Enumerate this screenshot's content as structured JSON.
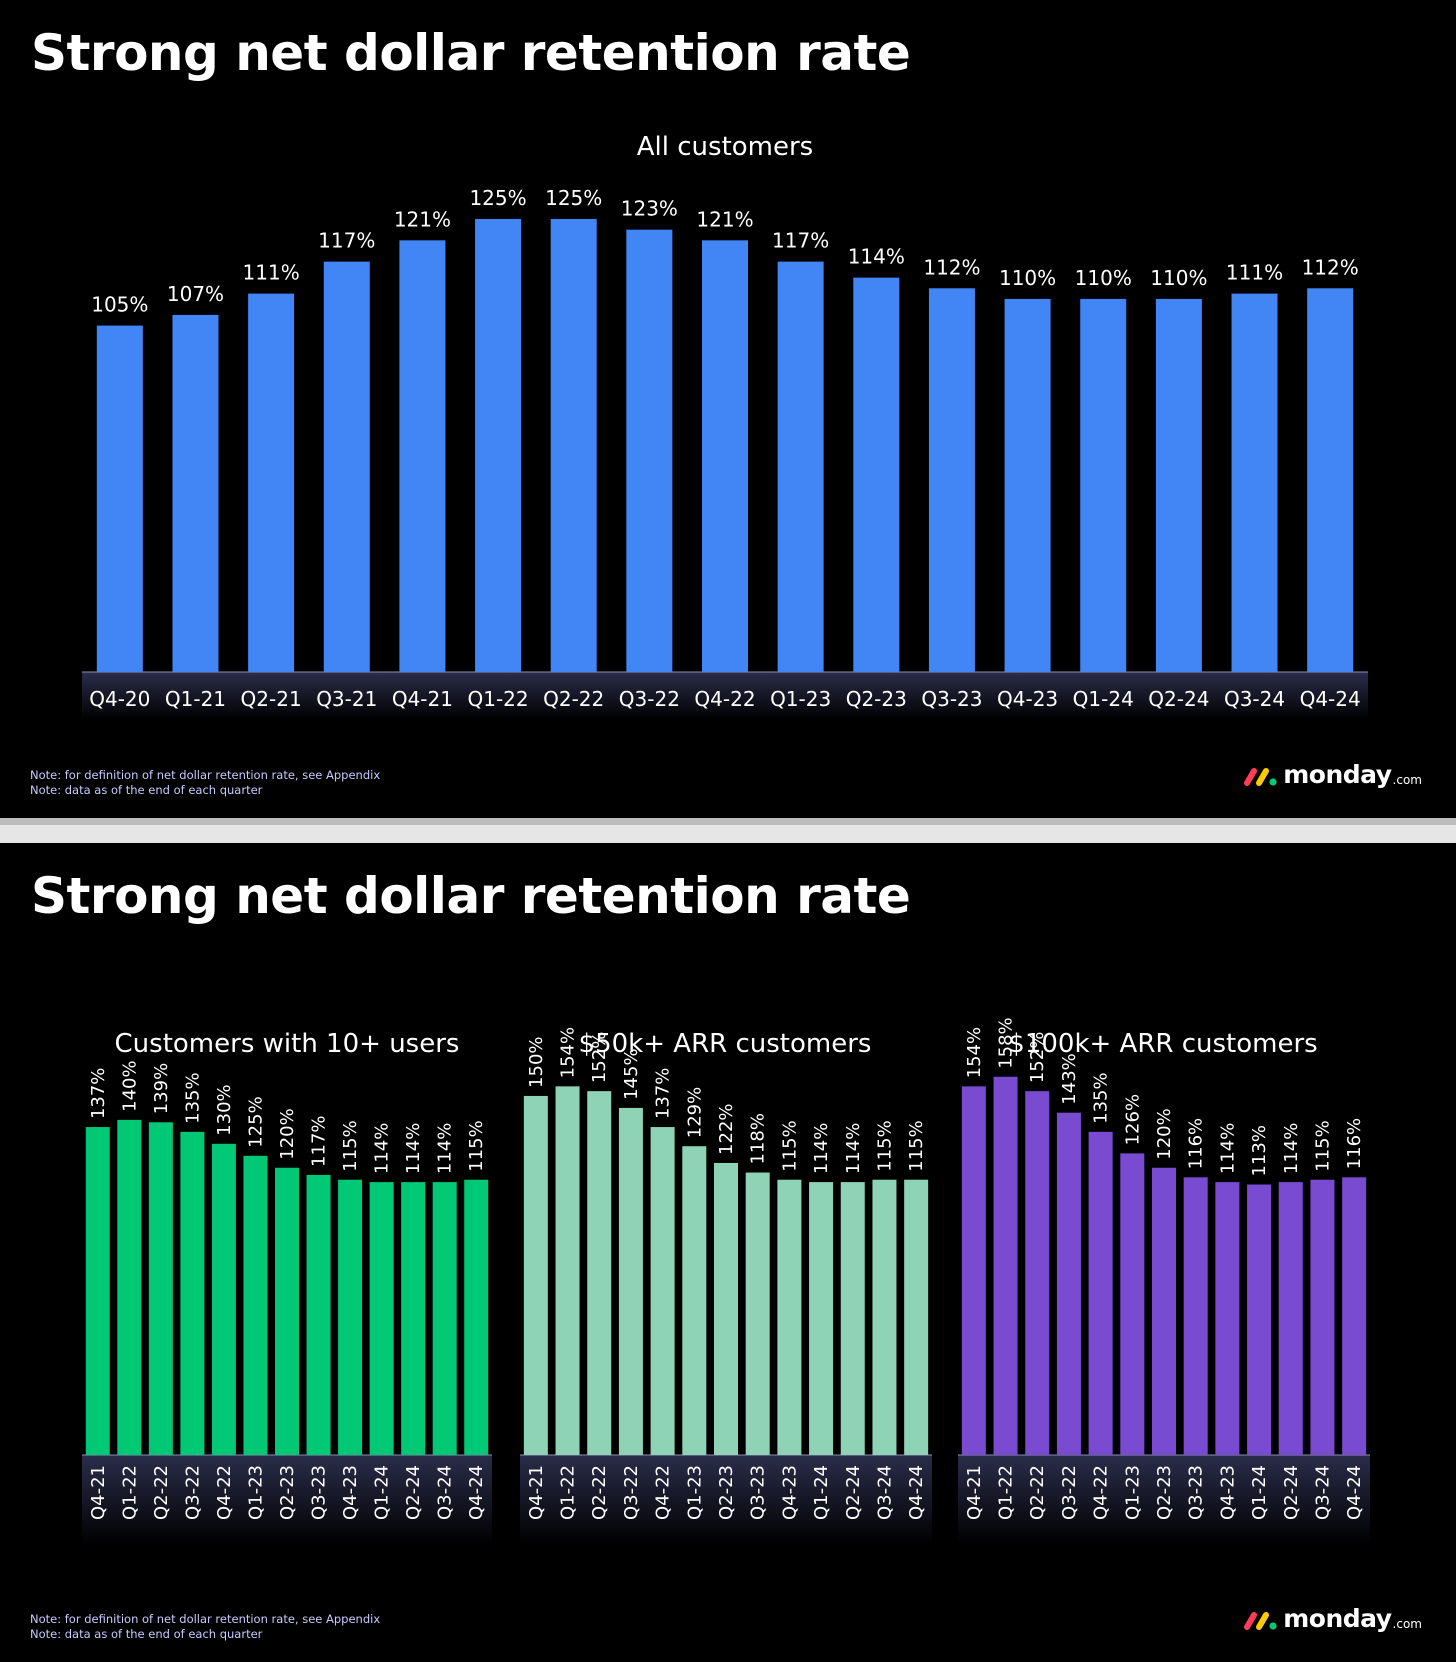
{
  "slides": [
    {
      "title": "Strong net dollar retention rate",
      "notes": [
        "Note: for definition of net dollar retention rate, see Appendix",
        "Note: data as of the end of each quarter"
      ],
      "logo": {
        "word": "monday",
        "suffix": ".com"
      }
    },
    {
      "title": "Strong net dollar retention rate",
      "notes": [
        "Note: for definition of net dollar retention rate, see Appendix",
        "Note: data as of the end of each quarter"
      ],
      "logo": {
        "word": "monday",
        "suffix": ".com"
      }
    }
  ],
  "colors": {
    "background": "#000000",
    "all_customers": "#4285f4",
    "ten_plus_users": "#00c875",
    "fifty_k_arr": "#8fd3b6",
    "hundred_k_arr": "#784bd1",
    "logo": [
      "#ff3d57",
      "#ffcb00",
      "#00c875"
    ]
  },
  "chart_data": [
    {
      "type": "bar",
      "title": "All customers",
      "categories": [
        "Q4-20",
        "Q1-21",
        "Q2-21",
        "Q3-21",
        "Q4-21",
        "Q1-22",
        "Q2-22",
        "Q3-22",
        "Q4-22",
        "Q1-23",
        "Q2-23",
        "Q3-23",
        "Q4-23",
        "Q1-24",
        "Q2-24",
        "Q3-24",
        "Q4-24"
      ],
      "values": [
        105,
        107,
        111,
        117,
        121,
        125,
        125,
        123,
        121,
        117,
        114,
        112,
        110,
        110,
        110,
        111,
        112
      ],
      "value_labels": [
        "105%",
        "107%",
        "111%",
        "117%",
        "121%",
        "125%",
        "125%",
        "123%",
        "121%",
        "117%",
        "114%",
        "112%",
        "110%",
        "110%",
        "110%",
        "111%",
        "112%"
      ],
      "color": "#4285f4",
      "ylim": [
        40,
        125
      ],
      "grid": false
    },
    {
      "type": "bar",
      "title": "Customers with 10+ users",
      "categories": [
        "Q4-21",
        "Q1-22",
        "Q2-22",
        "Q3-22",
        "Q4-22",
        "Q1-23",
        "Q2-23",
        "Q3-23",
        "Q4-23",
        "Q1-24",
        "Q2-24",
        "Q3-24",
        "Q4-24"
      ],
      "values": [
        137,
        140,
        139,
        135,
        130,
        125,
        120,
        117,
        115,
        114,
        114,
        114,
        115
      ],
      "value_labels": [
        "137%",
        "140%",
        "139%",
        "135%",
        "130%",
        "125%",
        "120%",
        "117%",
        "115%",
        "114%",
        "114%",
        "114%",
        "115%"
      ],
      "color": "#00c875",
      "ylim": [
        0,
        160
      ],
      "grid": false
    },
    {
      "type": "bar",
      "title": "$50k+ ARR customers",
      "categories": [
        "Q4-21",
        "Q1-22",
        "Q2-22",
        "Q3-22",
        "Q4-22",
        "Q1-23",
        "Q2-23",
        "Q3-23",
        "Q4-23",
        "Q1-24",
        "Q2-24",
        "Q3-24",
        "Q4-24"
      ],
      "values": [
        150,
        154,
        152,
        145,
        137,
        129,
        122,
        118,
        115,
        114,
        114,
        115,
        115
      ],
      "value_labels": [
        "150%",
        "154%",
        "152%",
        "145%",
        "137%",
        "129%",
        "122%",
        "118%",
        "115%",
        "114%",
        "114%",
        "115%",
        "115%"
      ],
      "color": "#8fd3b6",
      "ylim": [
        0,
        160
      ],
      "grid": false
    },
    {
      "type": "bar",
      "title": "$100k+ ARR customers",
      "categories": [
        "Q4-21",
        "Q1-22",
        "Q2-22",
        "Q3-22",
        "Q4-22",
        "Q1-23",
        "Q2-23",
        "Q3-23",
        "Q4-23",
        "Q1-24",
        "Q2-24",
        "Q3-24",
        "Q4-24"
      ],
      "values": [
        154,
        158,
        152,
        143,
        135,
        126,
        120,
        116,
        114,
        113,
        114,
        115,
        116
      ],
      "value_labels": [
        "154%",
        "158%",
        "152%",
        "143%",
        "135%",
        "126%",
        "120%",
        "116%",
        "114%",
        "113%",
        "114%",
        "115%",
        "116%"
      ],
      "color": "#784bd1",
      "ylim": [
        0,
        160
      ],
      "grid": false
    }
  ]
}
